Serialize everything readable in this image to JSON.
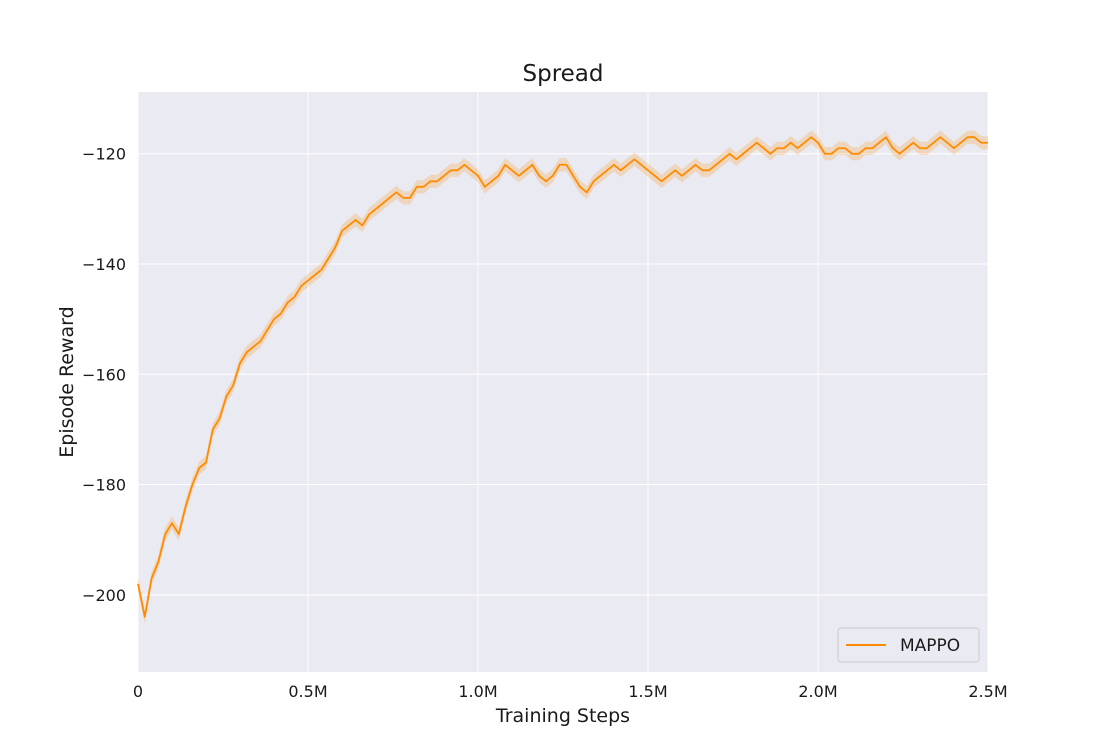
{
  "chart_data": {
    "type": "line",
    "title": "Spread",
    "xlabel": "Training Steps",
    "ylabel": "Episode Reward",
    "xlim": [
      0,
      2500000
    ],
    "ylim": [
      -214,
      -108.8
    ],
    "x_ticks": [
      {
        "value": 0,
        "label": "0"
      },
      {
        "value": 500000,
        "label": "0.5M"
      },
      {
        "value": 1000000,
        "label": "1.0M"
      },
      {
        "value": 1500000,
        "label": "1.5M"
      },
      {
        "value": 2000000,
        "label": "2.0M"
      },
      {
        "value": 2500000,
        "label": "2.5M"
      }
    ],
    "y_ticks": [
      {
        "value": -200,
        "label": "−200"
      },
      {
        "value": -180,
        "label": "−180"
      },
      {
        "value": -160,
        "label": "−160"
      },
      {
        "value": -140,
        "label": "−140"
      },
      {
        "value": -120,
        "label": "−120"
      }
    ],
    "grid": true,
    "legend_position": "bottom-right",
    "colors": {
      "line": "#ff8c00",
      "band": "#ff8c00",
      "background": "#eaeaf2",
      "grid": "#ffffff"
    },
    "series": [
      {
        "name": "MAPPO",
        "band_halfwidth": 1.2,
        "x": [
          0,
          20000,
          40000,
          60000,
          80000,
          100000,
          120000,
          140000,
          160000,
          180000,
          200000,
          220000,
          240000,
          260000,
          280000,
          300000,
          320000,
          340000,
          360000,
          380000,
          400000,
          420000,
          440000,
          460000,
          480000,
          500000,
          520000,
          540000,
          560000,
          580000,
          600000,
          620000,
          640000,
          660000,
          680000,
          700000,
          720000,
          740000,
          760000,
          780000,
          800000,
          820000,
          840000,
          860000,
          880000,
          900000,
          920000,
          940000,
          960000,
          980000,
          1000000,
          1020000,
          1040000,
          1060000,
          1080000,
          1100000,
          1120000,
          1140000,
          1160000,
          1180000,
          1200000,
          1220000,
          1240000,
          1260000,
          1280000,
          1300000,
          1320000,
          1340000,
          1360000,
          1380000,
          1400000,
          1420000,
          1440000,
          1460000,
          1480000,
          1500000,
          1520000,
          1540000,
          1560000,
          1580000,
          1600000,
          1620000,
          1640000,
          1660000,
          1680000,
          1700000,
          1720000,
          1740000,
          1760000,
          1780000,
          1800000,
          1820000,
          1840000,
          1860000,
          1880000,
          1900000,
          1920000,
          1940000,
          1960000,
          1980000,
          2000000,
          2020000,
          2040000,
          2060000,
          2080000,
          2100000,
          2120000,
          2140000,
          2160000,
          2180000,
          2200000,
          2220000,
          2240000,
          2260000,
          2280000,
          2300000,
          2320000,
          2340000,
          2360000,
          2380000,
          2400000,
          2420000,
          2440000,
          2460000,
          2480000,
          2500000
        ],
        "values": [
          -198,
          -204,
          -197,
          -194,
          -189,
          -187,
          -189,
          -184,
          -180,
          -177,
          -176,
          -170,
          -168,
          -164,
          -162,
          -158,
          -156,
          -155,
          -154,
          -152,
          -150,
          -149,
          -147,
          -146,
          -144,
          -143,
          -142,
          -141,
          -139,
          -137,
          -134,
          -133,
          -132,
          -133,
          -131,
          -130,
          -129,
          -128,
          -127,
          -128,
          -128,
          -126,
          -126,
          -125,
          -125,
          -124,
          -123,
          -123,
          -122,
          -123,
          -124,
          -126,
          -125,
          -124,
          -122,
          -123,
          -124,
          -123,
          -122,
          -124,
          -125,
          -124,
          -122,
          -122,
          -124,
          -126,
          -127,
          -125,
          -124,
          -123,
          -122,
          -123,
          -122,
          -121,
          -122,
          -123,
          -124,
          -125,
          -124,
          -123,
          -124,
          -123,
          -122,
          -123,
          -123,
          -122,
          -121,
          -120,
          -121,
          -120,
          -119,
          -118,
          -119,
          -120,
          -119,
          -119,
          -118,
          -119,
          -118,
          -117,
          -118,
          -120,
          -120,
          -119,
          -119,
          -120,
          -120,
          -119,
          -119,
          -118,
          -117,
          -119,
          -120,
          -119,
          -118,
          -119,
          -119,
          -118,
          -117,
          -118,
          -119,
          -118,
          -117,
          -117,
          -118,
          -118
        ]
      }
    ]
  }
}
